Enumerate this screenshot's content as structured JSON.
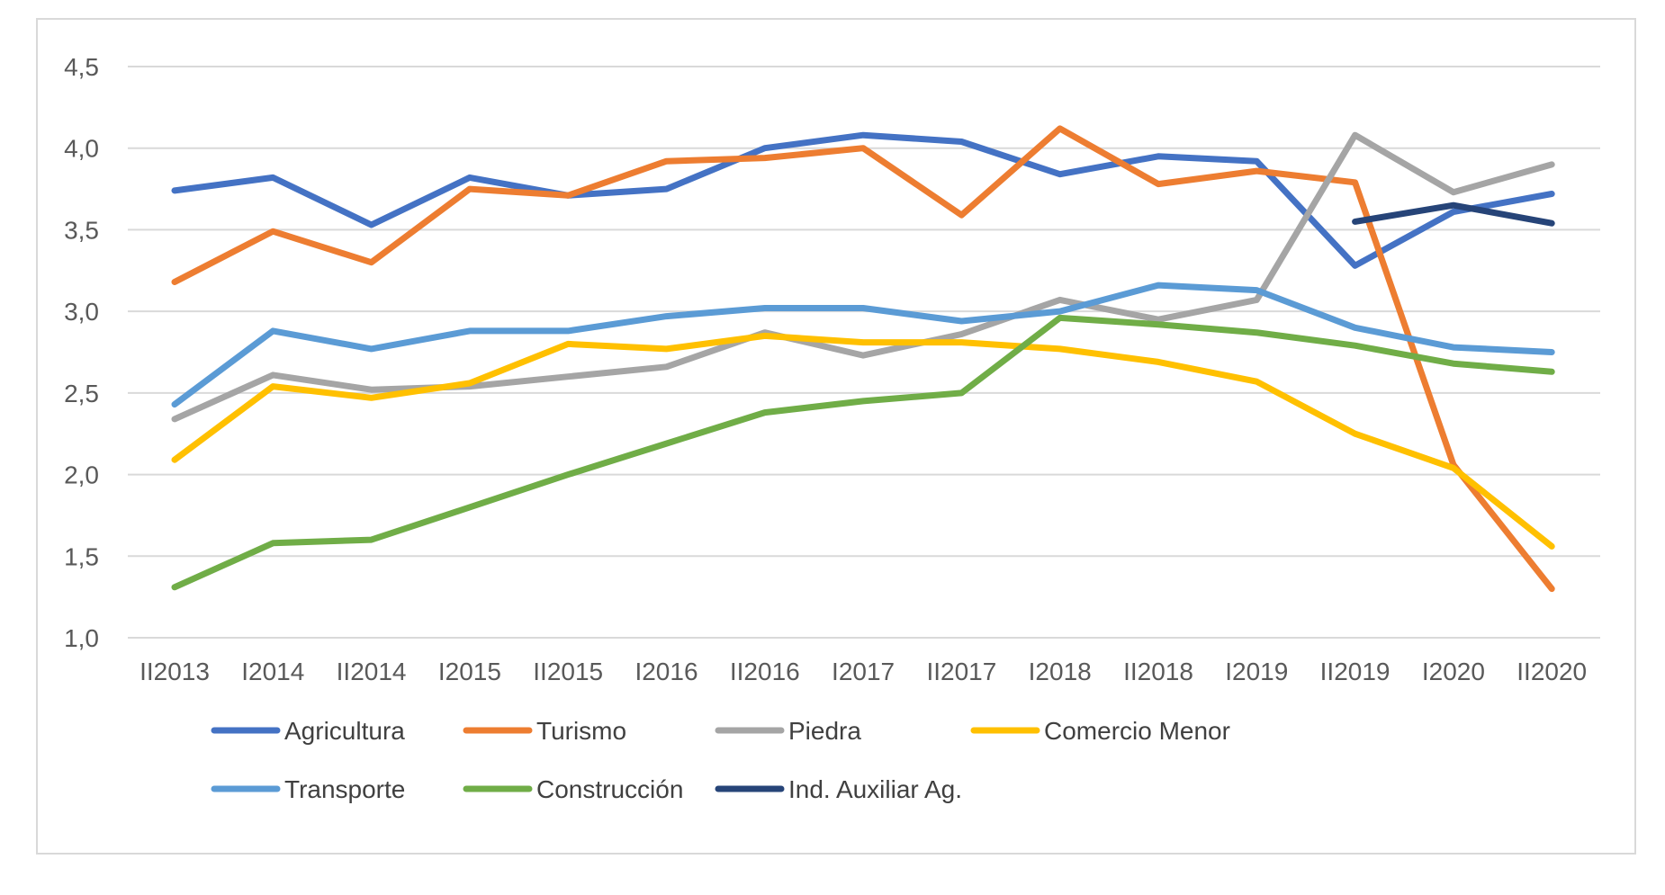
{
  "chart_data": {
    "type": "line",
    "title": "",
    "xlabel": "",
    "ylabel": "",
    "categories": [
      "II2013",
      "I2014",
      "II2014",
      "I2015",
      "II2015",
      "I2016",
      "II2016",
      "I2017",
      "II2017",
      "I2018",
      "II2018",
      "I2019",
      "II2019",
      "I2020",
      "II2020"
    ],
    "ylim": [
      1.0,
      4.5
    ],
    "yticks": [
      "1,0",
      "1,5",
      "2,0",
      "2,5",
      "3,0",
      "3,5",
      "4,0",
      "4,5"
    ],
    "yticks_values": [
      1.0,
      1.5,
      2.0,
      2.5,
      3.0,
      3.5,
      4.0,
      4.5
    ],
    "grid": true,
    "legend_position": "bottom",
    "series": [
      {
        "name": "Agricultura",
        "color": "#4472C4",
        "values": [
          3.74,
          3.82,
          3.53,
          3.82,
          3.71,
          3.75,
          4.0,
          4.08,
          4.04,
          3.84,
          3.95,
          3.92,
          3.28,
          3.61,
          3.72
        ]
      },
      {
        "name": "Turismo",
        "color": "#ED7D31",
        "values": [
          3.18,
          3.49,
          3.3,
          3.75,
          3.71,
          3.92,
          3.94,
          4.0,
          3.59,
          4.12,
          3.78,
          3.86,
          3.79,
          2.06,
          1.3
        ]
      },
      {
        "name": "Piedra",
        "color": "#A5A5A5",
        "values": [
          2.34,
          2.61,
          2.52,
          2.54,
          2.6,
          2.66,
          2.87,
          2.73,
          2.86,
          3.07,
          2.95,
          3.07,
          4.08,
          3.73,
          3.9
        ]
      },
      {
        "name": "Comercio Menor",
        "color": "#FFC000",
        "values": [
          2.09,
          2.54,
          2.47,
          2.56,
          2.8,
          2.77,
          2.85,
          2.81,
          2.81,
          2.77,
          2.69,
          2.57,
          2.25,
          2.04,
          1.56
        ]
      },
      {
        "name": "Transporte",
        "color": "#5B9BD5",
        "values": [
          2.43,
          2.88,
          2.77,
          2.88,
          2.88,
          2.97,
          3.02,
          3.02,
          2.94,
          3.0,
          3.16,
          3.13,
          2.9,
          2.78,
          2.75
        ]
      },
      {
        "name": "Construcción",
        "color": "#70AD47",
        "values": [
          1.31,
          1.58,
          1.6,
          1.8,
          2.0,
          2.19,
          2.38,
          2.45,
          2.5,
          2.96,
          2.92,
          2.87,
          2.79,
          2.68,
          2.63
        ]
      },
      {
        "name": "Ind. Auxiliar Ag.",
        "color": "#264478",
        "values": [
          null,
          null,
          null,
          null,
          null,
          null,
          null,
          null,
          null,
          null,
          null,
          null,
          3.55,
          3.65,
          3.54
        ]
      }
    ]
  }
}
